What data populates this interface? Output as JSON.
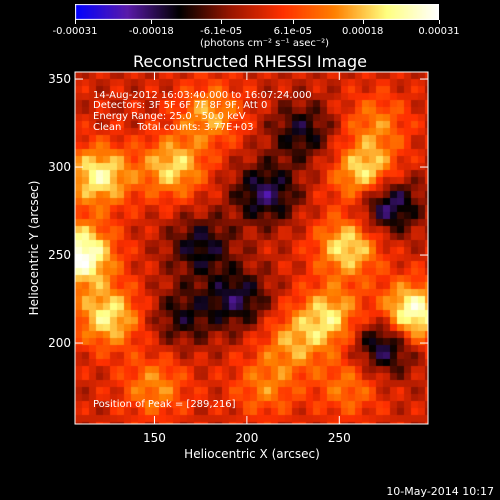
{
  "colorbar": {
    "tick_labels": [
      "-0.00031",
      "-0.00018",
      "-6.1e-05",
      "6.1e-05",
      "0.00018",
      "0.00031"
    ],
    "tick_values": [
      -0.00031,
      -0.00018,
      -6.1e-05,
      6.1e-05,
      0.00018,
      0.00031
    ],
    "range": [
      -0.00031,
      0.00031
    ],
    "units": "(photons cm⁻² s⁻¹ asec⁻²)",
    "colors": [
      "#0000ff",
      "#5a1aaa",
      "#000000",
      "#9a1500",
      "#ff3000",
      "#ff8000",
      "#ffff80",
      "#ffffff"
    ]
  },
  "title": "Reconstructed RHESSI Image",
  "annotations": {
    "line1": "14-Aug-2012 16:03:40.000 to 16:07:24.000",
    "line2": "Detectors: 3F 5F 6F 7F 8F 9F, Att 0",
    "line3": "Energy Range: 25.0 - 50.0 keV",
    "line4": "Clean     Total counts: 3.77E+03",
    "peak": "Position of Peak = [289,216]"
  },
  "footer": {
    "timestamp": "10-May-2014 10:17"
  },
  "chart_data": {
    "type": "heatmap",
    "title": "Reconstructed RHESSI Image",
    "xlabel": "Heliocentric X (arcsec)",
    "ylabel": "Heliocentric Y (arcsec)",
    "xlim": [
      107,
      298
    ],
    "ylim": [
      154,
      354
    ],
    "x_ticks": [
      150,
      200,
      250
    ],
    "y_ticks": [
      200,
      250,
      300,
      350
    ],
    "value_range": [
      -0.00031,
      0.00031
    ],
    "peak_position": [
      289,
      216
    ],
    "blobs": [
      {
        "x": 110,
        "y": 250,
        "value": 0.00031
      },
      {
        "x": 120,
        "y": 295,
        "value": 0.00024
      },
      {
        "x": 125,
        "y": 215,
        "value": 0.00022
      },
      {
        "x": 160,
        "y": 300,
        "value": 0.0002
      },
      {
        "x": 180,
        "y": 330,
        "value": 0.00016
      },
      {
        "x": 225,
        "y": 200,
        "value": 0.00014
      },
      {
        "x": 210,
        "y": 175,
        "value": 0.00012
      },
      {
        "x": 265,
        "y": 295,
        "value": 0.00026
      },
      {
        "x": 255,
        "y": 255,
        "value": 0.00022
      },
      {
        "x": 289,
        "y": 216,
        "value": 0.00031
      },
      {
        "x": 245,
        "y": 215,
        "value": 0.0002
      },
      {
        "x": 270,
        "y": 325,
        "value": 0.00012
      },
      {
        "x": 150,
        "y": 175,
        "value": 0.00014
      },
      {
        "x": 255,
        "y": 175,
        "value": 0.00012
      },
      {
        "x": 175,
        "y": 255,
        "value": -0.00015
      },
      {
        "x": 210,
        "y": 285,
        "value": -0.00018
      },
      {
        "x": 195,
        "y": 225,
        "value": -0.00016
      },
      {
        "x": 275,
        "y": 280,
        "value": -0.00025
      },
      {
        "x": 275,
        "y": 200,
        "value": -0.00022
      },
      {
        "x": 230,
        "y": 320,
        "value": -0.00014
      },
      {
        "x": 165,
        "y": 215,
        "value": -0.00012
      }
    ]
  }
}
